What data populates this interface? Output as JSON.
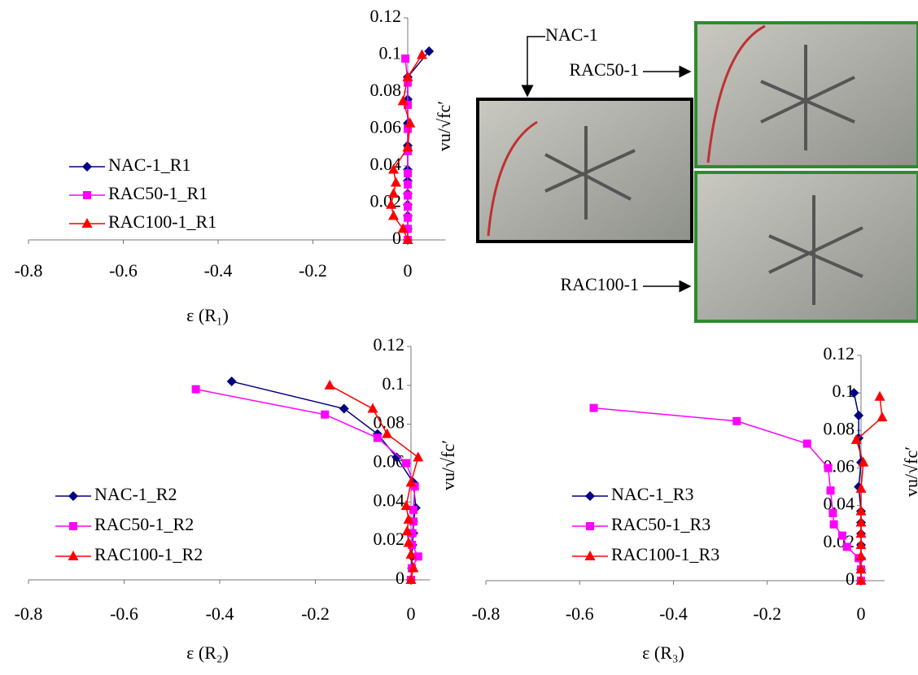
{
  "chart_data": [
    {
      "type": "line",
      "xlabel": "ε (R₁)",
      "ylabel": "vu/√fc′",
      "xlim": [
        -0.8,
        0.08
      ],
      "xticks": [
        -0.8,
        -0.6,
        -0.4,
        -0.2,
        0
      ],
      "ylim": [
        0,
        0.12
      ],
      "yticks": [
        0,
        0.02,
        0.04,
        0.06,
        0.08,
        0.1,
        0.12
      ],
      "series": [
        {
          "name": "NAC-1_R1",
          "color": "#000080",
          "marker": "diamond",
          "x": [
            0.045,
            0,
            0,
            0,
            0,
            0,
            0,
            0,
            0,
            0,
            0,
            0
          ],
          "values": [
            0.102,
            0.088,
            0.076,
            0.063,
            0.051,
            0.038,
            0.032,
            0.025,
            0.019,
            0.013,
            0.006,
            0
          ]
        },
        {
          "name": "RAC50-1_R1",
          "color": "#ff00ff",
          "marker": "square",
          "x": [
            -0.005,
            0,
            0,
            0,
            0,
            0,
            0,
            0,
            0,
            0,
            0,
            0
          ],
          "values": [
            0.098,
            0.085,
            0.073,
            0.06,
            0.048,
            0.036,
            0.03,
            0.024,
            0.018,
            0.012,
            0.006,
            0
          ]
        },
        {
          "name": "RAC100-1_R1",
          "color": "#ff0000",
          "marker": "triangle",
          "x": [
            0.03,
            0,
            -0.01,
            0.005,
            0,
            -0.03,
            -0.025,
            -0.03,
            -0.035,
            -0.03,
            -0.01,
            0
          ],
          "values": [
            0.1,
            0.088,
            0.075,
            0.063,
            0.05,
            0.038,
            0.031,
            0.025,
            0.019,
            0.013,
            0.006,
            0
          ]
        }
      ]
    },
    {
      "type": "line",
      "xlabel": "ε (R₂)",
      "ylabel": "vu/√fc′",
      "xlim": [
        -0.8,
        0.04
      ],
      "xticks": [
        -0.8,
        -0.6,
        -0.4,
        -0.2,
        0
      ],
      "ylim": [
        0,
        0.12
      ],
      "yticks": [
        0,
        0.02,
        0.04,
        0.06,
        0.08,
        0.1,
        0.12
      ],
      "series": [
        {
          "name": "NAC-1_R2",
          "color": "#000080",
          "marker": "diamond",
          "x": [
            -0.375,
            -0.14,
            -0.07,
            -0.03,
            0.005,
            0.01,
            0.005,
            0.005,
            0.003,
            0.002,
            0.002,
            0
          ],
          "values": [
            0.102,
            0.088,
            0.075,
            0.063,
            0.05,
            0.037,
            0.03,
            0.024,
            0.018,
            0.012,
            0.006,
            0
          ]
        },
        {
          "name": "RAC50-1_R2",
          "color": "#ff00ff",
          "marker": "square",
          "x": [
            -0.45,
            -0.18,
            -0.07,
            -0.01,
            0.008,
            0.005,
            0.005,
            0.003,
            0.002,
            0.015,
            0.002,
            0
          ],
          "values": [
            0.098,
            0.085,
            0.073,
            0.06,
            0.048,
            0.036,
            0.03,
            0.024,
            0.018,
            0.012,
            0.006,
            0
          ]
        },
        {
          "name": "RAC100-1_R2",
          "color": "#ff0000",
          "marker": "triangle",
          "x": [
            -0.17,
            -0.08,
            -0.05,
            0.015,
            0,
            -0.01,
            -0.005,
            -0.008,
            -0.005,
            0,
            0.005,
            0
          ],
          "values": [
            0.1,
            0.088,
            0.075,
            0.063,
            0.05,
            0.038,
            0.031,
            0.025,
            0.019,
            0.013,
            0.006,
            0
          ]
        }
      ]
    },
    {
      "type": "line",
      "xlabel": "ε (R₃)",
      "ylabel": "vu/√fc′",
      "xlim": [
        -0.8,
        0.05
      ],
      "xticks": [
        -0.8,
        -0.6,
        -0.4,
        -0.2,
        0
      ],
      "ylim": [
        0,
        0.12
      ],
      "yticks": [
        0,
        0.02,
        0.04,
        0.06,
        0.08,
        0.1,
        0.12
      ],
      "series": [
        {
          "name": "NAC-1_R3",
          "color": "#000080",
          "marker": "diamond",
          "x": [
            -0.015,
            -0.005,
            -0.005,
            0,
            -0.005,
            0,
            0,
            0,
            0,
            0,
            0,
            0
          ],
          "values": [
            0.1,
            0.088,
            0.076,
            0.063,
            0.05,
            0.037,
            0.031,
            0.025,
            0.019,
            0.012,
            0.006,
            0
          ]
        },
        {
          "name": "RAC50-1_R3",
          "color": "#ff00ff",
          "marker": "square",
          "x": [
            -0.57,
            -0.265,
            -0.115,
            -0.07,
            -0.065,
            -0.06,
            -0.058,
            -0.04,
            -0.03,
            -0.005,
            0,
            0
          ],
          "values": [
            0.092,
            0.085,
            0.073,
            0.06,
            0.048,
            0.036,
            0.03,
            0.024,
            0.018,
            0.012,
            0.006,
            0
          ]
        },
        {
          "name": "RAC100-1_R3",
          "color": "#ff0000",
          "marker": "triangle",
          "x": [
            0.04,
            0.045,
            -0.01,
            0.005,
            0,
            0,
            0,
            0,
            0,
            0,
            0,
            0
          ],
          "values": [
            0.098,
            0.087,
            0.075,
            0.063,
            0.049,
            0.037,
            0.031,
            0.025,
            0.019,
            0.013,
            0.006,
            0
          ]
        }
      ]
    }
  ],
  "photos": {
    "labels": [
      "NAC-1",
      "RAC50-1",
      "RAC100-1"
    ]
  }
}
